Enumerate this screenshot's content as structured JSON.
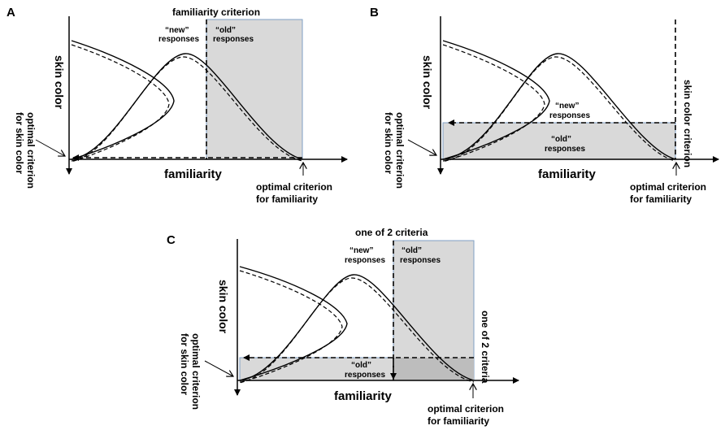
{
  "panels": [
    {
      "label": "A",
      "top_criterion": "familiarity criterion",
      "new_label": [
        "“new”",
        "responses"
      ],
      "old_label": [
        "“old”",
        "responses"
      ],
      "y_axis": "skin color",
      "x_axis": "familiarity",
      "optimal_skin": [
        "optimal criterion",
        "for skin color"
      ],
      "optimal_familiarity": [
        "optimal criterion",
        "for familiarity"
      ]
    },
    {
      "label": "B",
      "side_criterion": "skin color criterion",
      "new_label": [
        "“new”",
        "responses"
      ],
      "old_label": [
        "“old”",
        "responses"
      ],
      "y_axis": "skin color",
      "x_axis": "familiarity",
      "optimal_skin": [
        "optimal criterion",
        "for skin color"
      ],
      "optimal_familiarity": [
        "optimal criterion",
        "for familiarity"
      ]
    },
    {
      "label": "C",
      "top_criterion": "one of 2 criteria",
      "side_criterion": "one of 2 criteria",
      "new_label": [
        "“new”",
        "responses"
      ],
      "old_label_top": [
        "“old”",
        "responses"
      ],
      "old_label_bottom": [
        "“old”",
        "responses"
      ],
      "y_axis": "skin color",
      "x_axis": "familiarity",
      "optimal_skin": [
        "optimal criterion",
        "for skin color"
      ],
      "optimal_familiarity": [
        "optimal criterion",
        "for familiarity"
      ]
    }
  ],
  "colors": {
    "shade": "#d9d9d9",
    "shade_overlap": "#bdbdbd",
    "shade_border": "#7f9fc4",
    "ink": "#000000"
  }
}
